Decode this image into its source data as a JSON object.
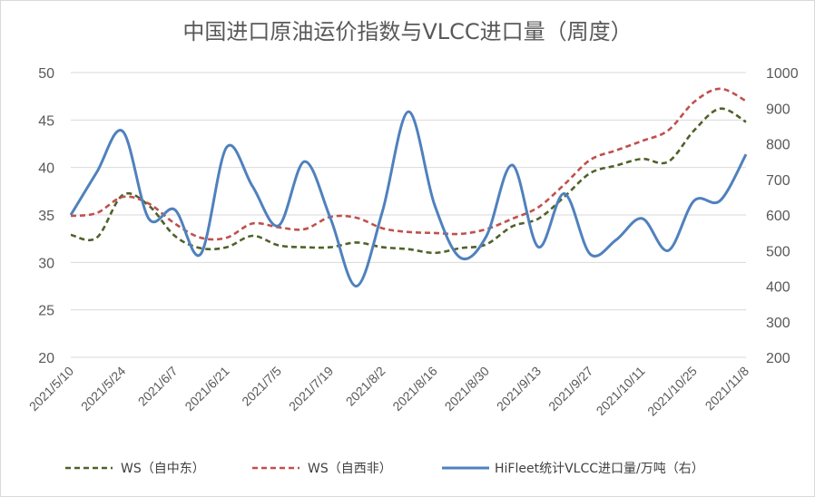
{
  "chart_data": {
    "type": "line",
    "title": "中国进口原油运价指数与VLCC进口量（周度）",
    "x": [
      "2021/5/10",
      "2021/5/17",
      "2021/5/24",
      "2021/5/31",
      "2021/6/7",
      "2021/6/14",
      "2021/6/21",
      "2021/6/28",
      "2021/7/5",
      "2021/7/12",
      "2021/7/19",
      "2021/7/26",
      "2021/8/2",
      "2021/8/9",
      "2021/8/16",
      "2021/8/23",
      "2021/8/30",
      "2021/9/6",
      "2021/9/13",
      "2021/9/20",
      "2021/9/27",
      "2021/10/4",
      "2021/10/11",
      "2021/10/18",
      "2021/10/25",
      "2021/11/1",
      "2021/11/8"
    ],
    "x_tick_labels": [
      "2021/5/10",
      "2021/5/24",
      "2021/6/7",
      "2021/6/21",
      "2021/7/5",
      "2021/7/19",
      "2021/8/2",
      "2021/8/16",
      "2021/8/30",
      "2021/9/13",
      "2021/9/27",
      "2021/10/11",
      "2021/10/25",
      "2021/11/8"
    ],
    "left_axis": {
      "ylim": [
        20,
        50
      ],
      "ticks": [
        "20",
        "25",
        "30",
        "35",
        "40",
        "45",
        "50"
      ]
    },
    "right_axis": {
      "ylim": [
        200,
        1000
      ],
      "ticks": [
        "200",
        "300",
        "400",
        "500",
        "600",
        "700",
        "800",
        "900",
        "1000"
      ]
    },
    "series": [
      {
        "name": "WS（自中东）",
        "axis": "left",
        "color": "#4f6228",
        "dash": "dashed",
        "values": [
          32.9,
          32.6,
          37.1,
          36.0,
          32.8,
          31.5,
          31.6,
          32.8,
          31.8,
          31.6,
          31.6,
          32.1,
          31.6,
          31.4,
          31.0,
          31.5,
          31.9,
          33.8,
          34.6,
          36.9,
          39.4,
          40.2,
          40.9,
          40.6,
          43.9,
          46.2,
          44.8
        ]
      },
      {
        "name": "WS（自西非）",
        "axis": "left",
        "color": "#c0504d",
        "dash": "dashed",
        "values": [
          34.9,
          35.2,
          36.9,
          36.2,
          34.1,
          32.6,
          32.6,
          34.1,
          33.7,
          33.5,
          34.8,
          34.7,
          33.6,
          33.2,
          33.1,
          33.0,
          33.5,
          34.6,
          35.8,
          38.2,
          40.8,
          41.8,
          42.8,
          43.9,
          46.9,
          48.3,
          47.0
        ]
      },
      {
        "name": "HiFleet统计VLCC进口量/万吨（右）",
        "axis": "right",
        "color": "#4f81bd",
        "dash": "solid",
        "values": [
          600,
          720,
          835,
          590,
          615,
          490,
          790,
          680,
          570,
          750,
          590,
          400,
          610,
          890,
          630,
          480,
          540,
          740,
          510,
          660,
          490,
          530,
          590,
          500,
          640,
          640,
          770
        ]
      }
    ]
  }
}
